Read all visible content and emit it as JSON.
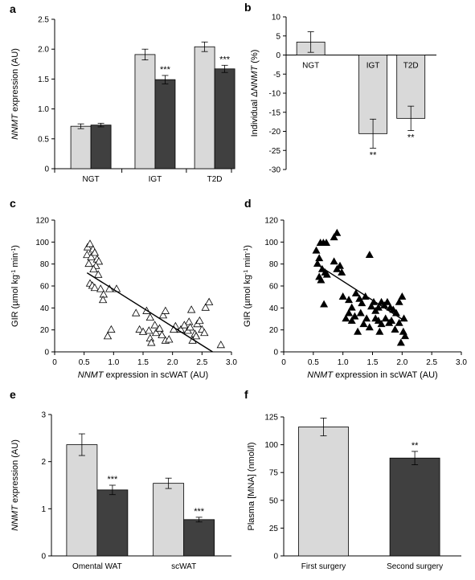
{
  "chart_data": [
    {
      "id": "a",
      "panel_label": "a",
      "type": "bar",
      "ylabel_parts": [
        {
          "text": "NNMT",
          "italic": true
        },
        {
          "text": " expression (AU)",
          "italic": false
        }
      ],
      "ylim": [
        0,
        2.5
      ],
      "yticks": [
        "0",
        "0.5",
        "1.0",
        "1.5",
        "2.0",
        "2.5"
      ],
      "categories": [
        "NGT",
        "IGT",
        "T2D"
      ],
      "series": [
        {
          "values": [
            0.71,
            1.91,
            2.04
          ],
          "errors": [
            0.04,
            0.09,
            0.08
          ],
          "color": "#d9d9d9"
        },
        {
          "values": [
            0.73,
            1.49,
            1.67
          ],
          "errors": [
            0.03,
            0.07,
            0.06
          ],
          "color": "#404040"
        }
      ],
      "annotations": [
        {
          "category": 1,
          "series": 1,
          "text": "***"
        },
        {
          "category": 2,
          "series": 1,
          "text": "***"
        }
      ]
    },
    {
      "id": "b",
      "panel_label": "b",
      "type": "bar",
      "ylabel_parts": [
        {
          "text": "Individual Δ",
          "italic": false
        },
        {
          "text": "NNMT",
          "italic": true
        },
        {
          "text": " (%)",
          "italic": false
        }
      ],
      "ylim": [
        -30,
        10
      ],
      "yticks": [
        "-30",
        "-25",
        "-20",
        "-15",
        "-10",
        "-5",
        "0",
        "5",
        "10"
      ],
      "categories": [
        "NGT",
        "IGT",
        "T2D"
      ],
      "series": [
        {
          "values": [
            3.4,
            -20.6,
            -16.6
          ],
          "errors": [
            2.7,
            3.8,
            3.2
          ],
          "color": "#d9d9d9"
        }
      ],
      "annotations": [
        {
          "category": 1,
          "series": 0,
          "text": "**"
        },
        {
          "category": 2,
          "series": 0,
          "text": "**"
        }
      ]
    },
    {
      "id": "c",
      "panel_label": "c",
      "type": "scatter",
      "marker": "open-triangle",
      "xlabel_parts": [
        {
          "text": "NNMT",
          "italic": true
        },
        {
          "text": " expression in scWAT (AU)",
          "italic": false
        }
      ],
      "ylabel_parts": [
        {
          "text": "GIR (µmol kg",
          "italic": false
        },
        {
          "text": "-1",
          "sup": true
        },
        {
          "text": " min",
          "italic": false
        },
        {
          "text": "-1",
          "sup": true
        },
        {
          "text": ")",
          "italic": false
        }
      ],
      "xlim": [
        0,
        3.0
      ],
      "ylim": [
        0,
        120
      ],
      "xticks": [
        "0",
        "0.5",
        "1.0",
        "1.5",
        "2.0",
        "2.5",
        "3.0"
      ],
      "yticks": [
        "0",
        "20",
        "40",
        "60",
        "80",
        "100",
        "120"
      ],
      "points": [
        [
          0.56,
          95
        ],
        [
          0.6,
          98
        ],
        [
          0.65,
          93
        ],
        [
          0.55,
          88
        ],
        [
          0.62,
          86
        ],
        [
          0.68,
          90
        ],
        [
          0.72,
          84
        ],
        [
          0.75,
          82
        ],
        [
          0.7,
          78
        ],
        [
          0.58,
          80
        ],
        [
          0.66,
          75
        ],
        [
          0.74,
          70
        ],
        [
          0.6,
          62
        ],
        [
          0.64,
          60
        ],
        [
          0.68,
          58
        ],
        [
          0.78,
          57
        ],
        [
          0.83,
          52
        ],
        [
          0.93,
          57
        ],
        [
          1.05,
          57
        ],
        [
          0.82,
          47
        ],
        [
          0.9,
          14
        ],
        [
          0.96,
          20
        ],
        [
          1.38,
          35
        ],
        [
          1.56,
          37
        ],
        [
          1.62,
          31
        ],
        [
          1.7,
          24
        ],
        [
          1.84,
          33
        ],
        [
          1.88,
          37
        ],
        [
          2.32,
          38
        ],
        [
          2.56,
          40
        ],
        [
          2.62,
          45
        ],
        [
          2.28,
          27
        ],
        [
          2.05,
          23
        ],
        [
          1.44,
          20
        ],
        [
          1.5,
          18
        ],
        [
          1.6,
          19
        ],
        [
          1.62,
          12
        ],
        [
          1.72,
          17
        ],
        [
          1.78,
          21
        ],
        [
          1.82,
          15
        ],
        [
          1.88,
          10
        ],
        [
          1.94,
          11
        ],
        [
          2.02,
          20
        ],
        [
          2.14,
          20
        ],
        [
          2.2,
          24
        ],
        [
          2.26,
          19
        ],
        [
          2.3,
          22
        ],
        [
          2.38,
          16
        ],
        [
          2.42,
          25
        ],
        [
          2.46,
          28
        ],
        [
          2.5,
          20
        ],
        [
          2.54,
          17
        ],
        [
          2.4,
          14
        ],
        [
          2.34,
          10
        ],
        [
          1.64,
          8
        ],
        [
          2.82,
          6
        ]
      ],
      "fit_line": [
        [
          0.55,
          72
        ],
        [
          2.68,
          0
        ]
      ]
    },
    {
      "id": "d",
      "panel_label": "d",
      "type": "scatter",
      "marker": "filled-triangle",
      "xlabel_parts": [
        {
          "text": "NNMT",
          "italic": true
        },
        {
          "text": " expression in scWAT (AU)",
          "italic": false
        }
      ],
      "ylabel_parts": [
        {
          "text": "GIR (µmol kg",
          "italic": false
        },
        {
          "text": "-1",
          "sup": true
        },
        {
          "text": " min",
          "italic": false
        },
        {
          "text": "-1",
          "sup": true
        },
        {
          "text": ")",
          "italic": false
        }
      ],
      "xlim": [
        0,
        3.0
      ],
      "ylim": [
        0,
        120
      ],
      "xticks": [
        "0",
        "0.5",
        "1.0",
        "1.5",
        "2.0",
        "2.5",
        "3.0"
      ],
      "yticks": [
        "0",
        "20",
        "40",
        "60",
        "80",
        "100",
        "120"
      ],
      "points": [
        [
          0.62,
          99
        ],
        [
          0.67,
          99
        ],
        [
          0.72,
          99
        ],
        [
          0.85,
          104
        ],
        [
          0.9,
          108
        ],
        [
          0.55,
          92
        ],
        [
          0.6,
          85
        ],
        [
          0.57,
          80
        ],
        [
          0.65,
          75
        ],
        [
          0.6,
          68
        ],
        [
          0.63,
          65
        ],
        [
          0.7,
          72
        ],
        [
          0.73,
          70
        ],
        [
          0.85,
          82
        ],
        [
          0.9,
          75
        ],
        [
          0.95,
          78
        ],
        [
          0.98,
          72
        ],
        [
          0.68,
          43
        ],
        [
          1.0,
          50
        ],
        [
          1.1,
          47
        ],
        [
          1.15,
          40
        ],
        [
          1.22,
          53
        ],
        [
          1.28,
          48
        ],
        [
          1.32,
          44
        ],
        [
          1.38,
          50
        ],
        [
          1.45,
          88
        ],
        [
          1.48,
          41
        ],
        [
          1.52,
          45
        ],
        [
          1.55,
          37
        ],
        [
          1.6,
          40
        ],
        [
          1.65,
          45
        ],
        [
          1.7,
          42
        ],
        [
          1.75,
          45
        ],
        [
          1.8,
          40
        ],
        [
          1.85,
          38
        ],
        [
          1.9,
          35
        ],
        [
          1.95,
          45
        ],
        [
          2.0,
          50
        ],
        [
          2.03,
          30
        ],
        [
          1.05,
          30
        ],
        [
          1.1,
          35
        ],
        [
          1.15,
          28
        ],
        [
          1.2,
          32
        ],
        [
          1.25,
          18
        ],
        [
          1.3,
          35
        ],
        [
          1.35,
          25
        ],
        [
          1.4,
          30
        ],
        [
          1.45,
          22
        ],
        [
          1.55,
          30
        ],
        [
          1.6,
          28
        ],
        [
          1.65,
          25
        ],
        [
          1.72,
          30
        ],
        [
          1.78,
          26
        ],
        [
          1.82,
          28
        ],
        [
          1.88,
          20
        ],
        [
          1.95,
          26
        ],
        [
          2.02,
          18
        ],
        [
          1.98,
          8
        ],
        [
          1.62,
          18
        ],
        [
          2.05,
          14
        ]
      ],
      "fit_line": [
        [
          0.55,
          80
        ],
        [
          2.05,
          28
        ]
      ]
    },
    {
      "id": "e",
      "panel_label": "e",
      "type": "bar",
      "ylabel_parts": [
        {
          "text": "NNMT",
          "italic": true
        },
        {
          "text": " expression (AU)",
          "italic": false
        }
      ],
      "ylim": [
        0,
        3
      ],
      "yticks": [
        "0",
        "1",
        "2",
        "3"
      ],
      "categories": [
        "Omental WAT",
        "scWAT"
      ],
      "series": [
        {
          "values": [
            2.36,
            1.54
          ],
          "errors": [
            0.23,
            0.11
          ],
          "color": "#d9d9d9"
        },
        {
          "values": [
            1.4,
            0.77
          ],
          "errors": [
            0.1,
            0.05
          ],
          "color": "#404040"
        }
      ],
      "annotations": [
        {
          "category": 0,
          "series": 1,
          "text": "***"
        },
        {
          "category": 1,
          "series": 1,
          "text": "***"
        }
      ]
    },
    {
      "id": "f",
      "panel_label": "f",
      "type": "bar",
      "ylabel_parts": [
        {
          "text": "Plasma [MNA] (nmol/l)",
          "italic": false
        }
      ],
      "ylim": [
        0,
        125
      ],
      "yticks": [
        "0",
        "25",
        "50",
        "75",
        "100",
        "125"
      ],
      "categories": [
        "First surgery",
        "Second surgery"
      ],
      "series": [
        {
          "values": [
            116,
            88
          ],
          "errors": [
            8,
            6
          ],
          "colors": [
            "#d9d9d9",
            "#404040"
          ]
        }
      ],
      "annotations": [
        {
          "category": 1,
          "series": 0,
          "text": "**"
        }
      ]
    }
  ]
}
